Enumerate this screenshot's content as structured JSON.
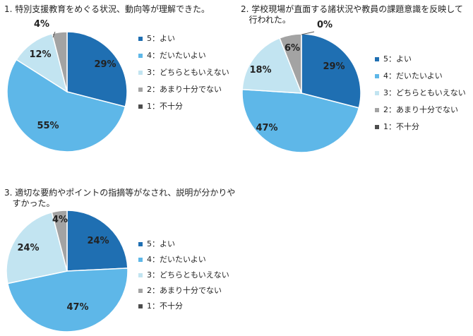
{
  "legend": [
    "5：よい",
    "4：だいたいよい",
    "3：どちらともいえない",
    "2：あまり十分でない",
    "1：不十分"
  ],
  "colors": [
    "#1f6fb2",
    "#5eb7e8",
    "#c2e4f1",
    "#a3a3a3",
    "#4d4d4d"
  ],
  "chart_data": [
    {
      "type": "pie",
      "title": "1. 特別支援教育をめぐる状況、動向等が理解できた。",
      "categories": [
        "5：よい",
        "4：だいたいよい",
        "3：どちらともいえない",
        "2：あまり十分でない",
        "1：不十分"
      ],
      "values": [
        29,
        55,
        12,
        4,
        0
      ],
      "labels": [
        "29%",
        "55%",
        "12%",
        "4%",
        ""
      ]
    },
    {
      "type": "pie",
      "title": "2. 学校現場が直面する諸状況や教員の課題意識を反映して\n   行われた。",
      "categories": [
        "5：よい",
        "4：だいたいよい",
        "3：どちらともいえない",
        "2：あまり十分でない",
        "1：不十分"
      ],
      "values": [
        29,
        47,
        18,
        6,
        0
      ],
      "labels": [
        "29%",
        "47%",
        "18%",
        "6%",
        "0%"
      ]
    },
    {
      "type": "pie",
      "title": "3. 適切な要約やポイントの指摘等がなされ、説明が分かりや\n   すかった。",
      "categories": [
        "5：よい",
        "4：だいたいよい",
        "3：どちらともいえない",
        "2：あまり十分でない",
        "1：不十分"
      ],
      "values": [
        24,
        47,
        24,
        4,
        0
      ],
      "labels": [
        "24%",
        "47%",
        "24%",
        "4%",
        ""
      ]
    }
  ]
}
